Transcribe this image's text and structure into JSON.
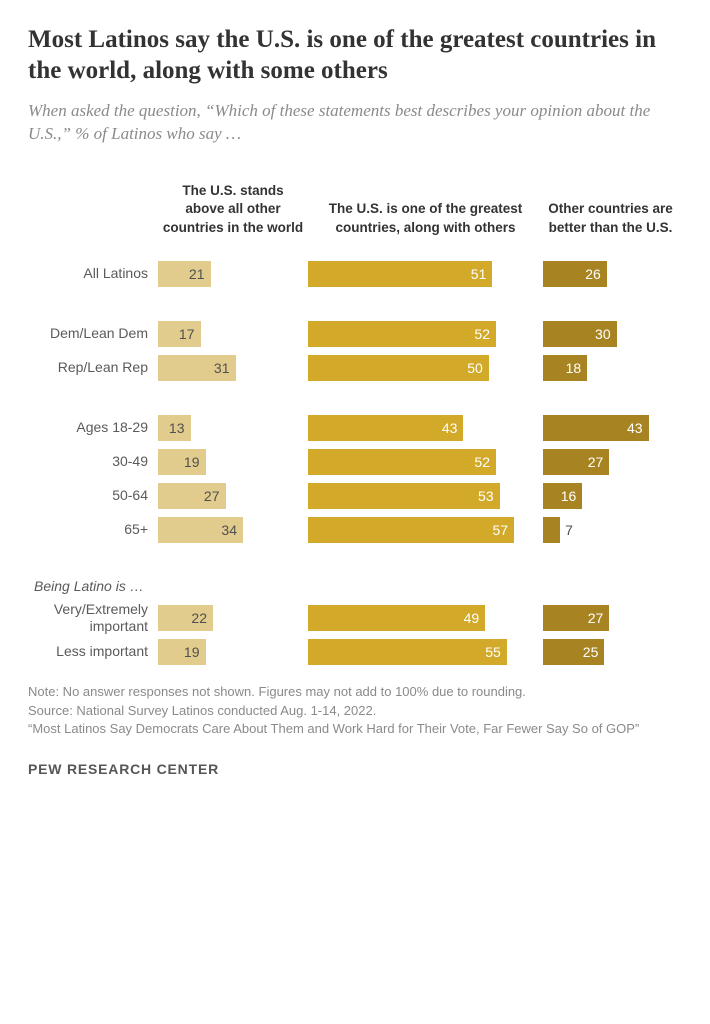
{
  "title": "Most Latinos say the U.S. is one of the greatest countries in the world, along with some others",
  "subtitle": "When asked the question, “Which of these statements best describes your opinion about the U.S.,” % of Latinos who say …",
  "columns": {
    "c1": "The U.S. stands above all other countries in the world",
    "c2": "The U.S. is one of the greatest countries, along with others",
    "c3": "Other countries are better than the U.S."
  },
  "colors": {
    "c1": "#e2cc8d",
    "c2": "#d2a928",
    "c3": "#a78421",
    "text": "#333333",
    "subtext": "#8a8a8a",
    "bg": "#ffffff"
  },
  "scale": {
    "c1_max": 60,
    "c2_max": 65,
    "c3_max": 55
  },
  "groups": [
    {
      "rows": [
        {
          "label": "All Latinos",
          "v1": 21,
          "v2": 51,
          "v3": 26
        }
      ]
    },
    {
      "rows": [
        {
          "label": "Dem/Lean Dem",
          "v1": 17,
          "v2": 52,
          "v3": 30
        },
        {
          "label": "Rep/Lean Rep",
          "v1": 31,
          "v2": 50,
          "v3": 18
        }
      ]
    },
    {
      "rows": [
        {
          "label": "Ages 18-29",
          "v1": 13,
          "v2": 43,
          "v3": 43
        },
        {
          "label": "30-49",
          "v1": 19,
          "v2": 52,
          "v3": 27
        },
        {
          "label": "50-64",
          "v1": 27,
          "v2": 53,
          "v3": 16
        },
        {
          "label": "65+",
          "v1": 34,
          "v2": 57,
          "v3": 7
        }
      ]
    },
    {
      "header": "Being Latino is …",
      "rows": [
        {
          "label": "Very/Extremely important",
          "v1": 22,
          "v2": 49,
          "v3": 27
        },
        {
          "label": "Less important",
          "v1": 19,
          "v2": 55,
          "v3": 25
        }
      ]
    }
  ],
  "notes": [
    "Note: No answer responses not shown. Figures may not add to 100% due to rounding.",
    "Source: National Survey Latinos conducted Aug. 1-14, 2022.",
    "“Most Latinos Say Democrats Care About Them and Work Hard for Their Vote, Far Fewer Say So of GOP”"
  ],
  "logo": "PEW RESEARCH CENTER"
}
